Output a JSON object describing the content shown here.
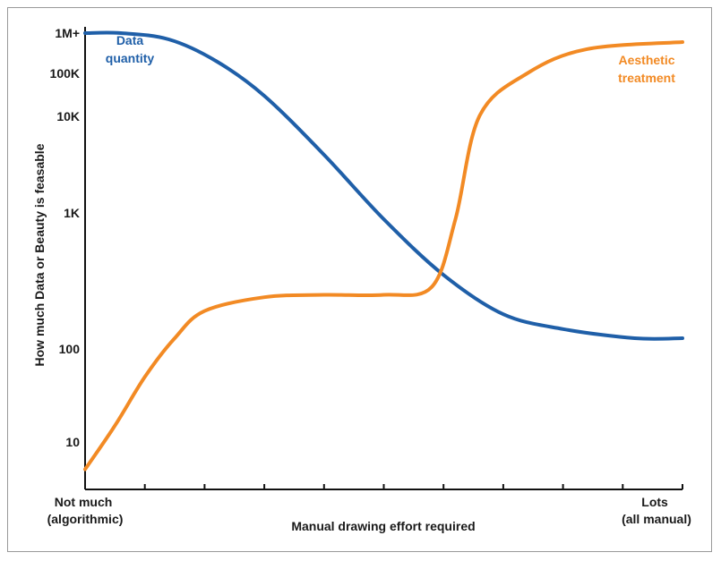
{
  "chart_data": {
    "type": "line",
    "ylabel": "How much Data or Beauty is feasable",
    "xlabel": "Manual drawing effort required",
    "x_label_start": [
      "Not much",
      "(algorithmic)"
    ],
    "x_label_end": [
      "Lots",
      "(all manual)"
    ],
    "y_ticks": [
      {
        "label": "10",
        "value": 10
      },
      {
        "label": "100",
        "value": 100
      },
      {
        "label": "1K",
        "value": 1000
      },
      {
        "label": "10K",
        "value": 10000
      },
      {
        "label": "100K",
        "value": 100000
      },
      {
        "label": "1M+",
        "value": 1000000
      }
    ],
    "x_tick_count": 10,
    "y_scale": "log (nonuniform spacing)",
    "xlim": [
      0,
      1
    ],
    "grid": false,
    "series": [
      {
        "name": "Data quantity",
        "label_lines": [
          "Data",
          "quantity"
        ],
        "color": "#1f5fa8",
        "points": [
          [
            0.0,
            1000000
          ],
          [
            0.06,
            1000000
          ],
          [
            0.14,
            700000
          ],
          [
            0.22,
            200000
          ],
          [
            0.3,
            30000
          ],
          [
            0.4,
            4000
          ],
          [
            0.5,
            900
          ],
          [
            0.6,
            350
          ],
          [
            0.7,
            180
          ],
          [
            0.8,
            140
          ],
          [
            0.92,
            120
          ],
          [
            1.0,
            120
          ]
        ]
      },
      {
        "name": "Aesthetic treatment",
        "label_lines": [
          "Aesthetic",
          "treatment"
        ],
        "color": "#f28a24",
        "points": [
          [
            0.0,
            5
          ],
          [
            0.05,
            15
          ],
          [
            0.1,
            50
          ],
          [
            0.15,
            120
          ],
          [
            0.2,
            190
          ],
          [
            0.3,
            240
          ],
          [
            0.4,
            250
          ],
          [
            0.5,
            250
          ],
          [
            0.58,
            285
          ],
          [
            0.62,
            900
          ],
          [
            0.66,
            10000
          ],
          [
            0.74,
            100000
          ],
          [
            0.84,
            400000
          ],
          [
            1.0,
            600000
          ]
        ]
      }
    ]
  }
}
